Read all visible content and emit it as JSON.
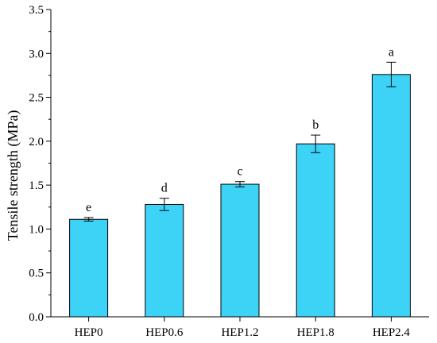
{
  "chart_data": {
    "type": "bar",
    "title": "",
    "xlabel": "",
    "ylabel": "Tensile strength (MPa)",
    "ylim": [
      0,
      3.5
    ],
    "yticks": [
      "0.0",
      "0.5",
      "1.0",
      "1.5",
      "2.0",
      "2.5",
      "3.0",
      "3.5"
    ],
    "categories": [
      "HEP0",
      "HEP0.6",
      "HEP1.2",
      "HEP1.8",
      "HEP2.4"
    ],
    "values": [
      1.11,
      1.28,
      1.51,
      1.97,
      2.76
    ],
    "errors": [
      0.02,
      0.07,
      0.03,
      0.1,
      0.14
    ],
    "significance_letters": [
      "e",
      "d",
      "c",
      "b",
      "a"
    ],
    "bar_color": "#3dd3f7",
    "bar_edge_color": "#000000",
    "grid": false,
    "legend": "none"
  }
}
